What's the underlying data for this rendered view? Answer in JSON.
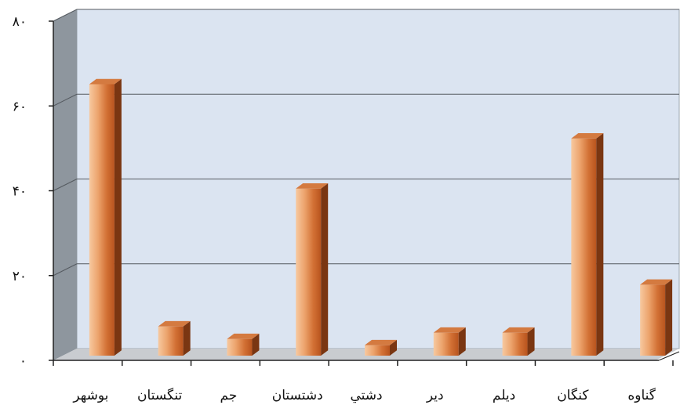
{
  "chart_data": {
    "type": "bar",
    "categories": [
      "بوشهر",
      "تنگستان",
      "جم",
      "دشتستان",
      "دشتي",
      "دير",
      "ديلم",
      "کنگان",
      "گناوه"
    ],
    "values": [
      65,
      7,
      4,
      40,
      2.5,
      5.5,
      5.5,
      52,
      17
    ],
    "ylim": [
      0,
      80
    ],
    "yticks": [
      "۰",
      "۲۰",
      "۴۰",
      "۶۰",
      "۸۰"
    ],
    "ytick_values": [
      0,
      20,
      40,
      60,
      80
    ],
    "grid": true,
    "legend": "none",
    "colors": {
      "bar_front_light": "#f7c9a0",
      "bar_front_mid": "#e08a4e",
      "bar_front_dark": "#b8541e",
      "bar_side": "#7a3612",
      "bar_top": "#d47a40",
      "plot_back": "#dbe4f1",
      "plot_left_wall": "#8e969e",
      "plot_floor": "#c9ccd0",
      "gridline": "#555a60"
    }
  }
}
